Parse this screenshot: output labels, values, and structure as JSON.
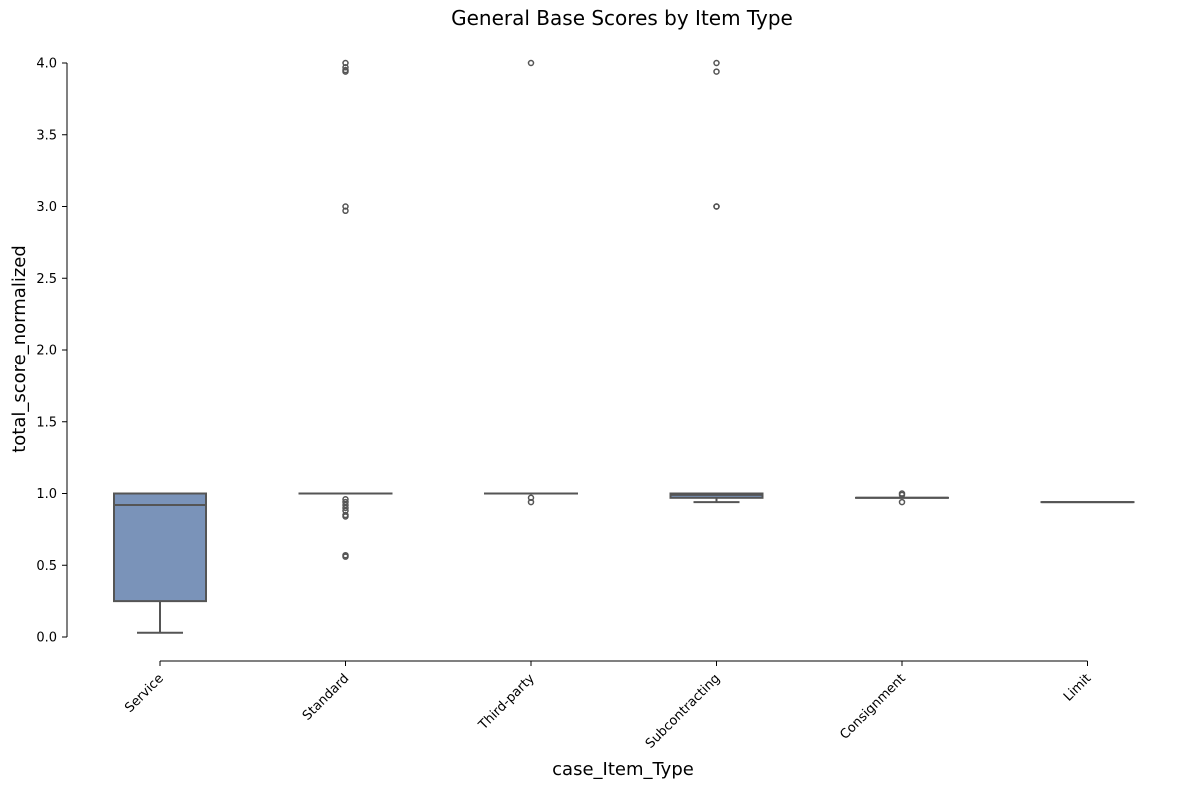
{
  "chart_data": {
    "type": "box",
    "title": "General Base Scores by Item Type",
    "xlabel": "case_Item_Type",
    "ylabel": "total_score_normalized",
    "ylim": [
      0,
      4
    ],
    "yticks": [
      "0.0",
      "0.5",
      "1.0",
      "1.5",
      "2.0",
      "2.5",
      "3.0",
      "3.5",
      "4.0"
    ],
    "categories": [
      "Service",
      "Standard",
      "Third-party",
      "Subcontracting",
      "Consignment",
      "Limit"
    ],
    "grid": false,
    "colors": {
      "box_fill": "#7a93b9",
      "line": "#555555"
    },
    "boxes": [
      {
        "category": "Service",
        "whislo": 0.03,
        "q1": 0.25,
        "median": 0.92,
        "q3": 1.0,
        "whishi": 1.0,
        "fliers": []
      },
      {
        "category": "Standard",
        "whislo": 1.0,
        "q1": 1.0,
        "median": 1.0,
        "q3": 1.0,
        "whishi": 1.0,
        "fliers": [
          0.56,
          0.57,
          0.84,
          0.85,
          0.88,
          0.9,
          0.92,
          0.94,
          0.96,
          2.97,
          3.0,
          3.94,
          3.95,
          3.97,
          4.0
        ]
      },
      {
        "category": "Third-party",
        "whislo": 1.0,
        "q1": 1.0,
        "median": 1.0,
        "q3": 1.0,
        "whishi": 1.0,
        "fliers": [
          0.94,
          0.97,
          4.0
        ]
      },
      {
        "category": "Subcontracting",
        "whislo": 0.94,
        "q1": 0.97,
        "median": 0.99,
        "q3": 1.0,
        "whishi": 1.0,
        "fliers": [
          3.0,
          3.0,
          3.94,
          4.0
        ]
      },
      {
        "category": "Consignment",
        "whislo": 0.97,
        "q1": 0.97,
        "median": 0.97,
        "q3": 0.97,
        "whishi": 0.97,
        "fliers": [
          0.94,
          0.99,
          1.0
        ]
      },
      {
        "category": "Limit",
        "whislo": 0.94,
        "q1": 0.94,
        "median": 0.94,
        "q3": 0.94,
        "whishi": 0.94,
        "fliers": []
      }
    ]
  }
}
